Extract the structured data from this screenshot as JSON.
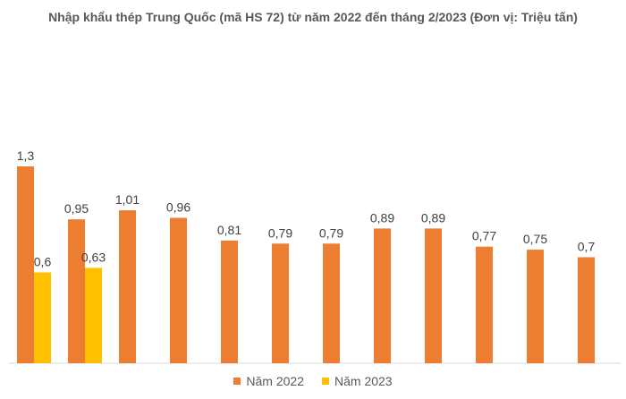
{
  "chart_data": {
    "type": "bar",
    "title": "Nhập khẩu thép Trung Quốc (mã HS 72) từ năm 2022 đến tháng 2/2023 (Đơn vị: Triệu tấn)",
    "categories": [
      "",
      "",
      "",
      "",
      "",
      "",
      "",
      "",
      "",
      "",
      "",
      ""
    ],
    "series": [
      {
        "name": "Năm 2022",
        "color": "#ED7D31",
        "values": [
          1.3,
          0.95,
          1.01,
          0.96,
          0.81,
          0.79,
          0.79,
          0.89,
          0.89,
          0.77,
          0.75,
          0.7
        ],
        "labels": [
          "1,3",
          "0,95",
          "1,01",
          "0,96",
          "0,81",
          "0,79",
          "0,79",
          "0,89",
          "0,89",
          "0,77",
          "0,75",
          "0,7"
        ]
      },
      {
        "name": "Năm 2023",
        "color": "#FFC000",
        "values": [
          0.6,
          0.63,
          null,
          null,
          null,
          null,
          null,
          null,
          null,
          null,
          null,
          null
        ],
        "labels": [
          "0,6",
          "0,63",
          "",
          "",
          "",
          "",
          "",
          "",
          "",
          "",
          "",
          ""
        ]
      }
    ],
    "ylim": [
      0,
      1.3
    ],
    "grid": false,
    "legend_position": "bottom"
  }
}
